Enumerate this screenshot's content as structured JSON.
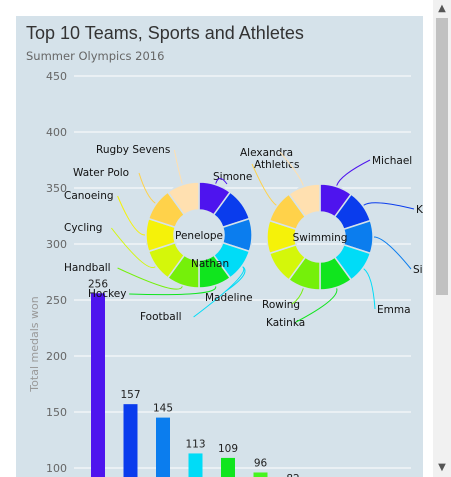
{
  "chart_data": {
    "type": "bar",
    "title": "Top 10 Teams, Sports and Athletes",
    "subtitle": "Summer Olympics 2016",
    "ylabel": "Total medals won",
    "ylim": [
      100,
      450
    ],
    "yticks": [
      100,
      150,
      200,
      250,
      300,
      350,
      400,
      450
    ],
    "grid": true,
    "series": [
      {
        "values": [
          256,
          157,
          145,
          113,
          109,
          96,
          82
        ]
      }
    ],
    "bar_colors": [
      "#4e14ee",
      "#0a3ced",
      "#0b7dee",
      "#00dcf7",
      "#10e51e",
      "#47f51f",
      "#a6f70a"
    ],
    "donuts": [
      {
        "center_label": "Penelope",
        "slices": [
          {
            "label": "Simone",
            "color": "#4e14ee"
          },
          {
            "label": "",
            "color": "#0a3ced"
          },
          {
            "label": "Nathan",
            "color": "#0b7dee"
          },
          {
            "label": "Madeline",
            "color": "#00dcf7"
          },
          {
            "label": "",
            "color": "#10e51e"
          },
          {
            "label": "",
            "color": "#75f00a"
          },
          {
            "label": "",
            "color": "#d4f70a"
          },
          {
            "label": "",
            "color": "#f5f209"
          },
          {
            "label": "",
            "color": "#ffd24a"
          },
          {
            "label": "",
            "color": "#ffe0b0"
          }
        ],
        "outer_labels": [
          {
            "text": "Rugby Sevens",
            "slice": 9
          },
          {
            "text": "Water Polo",
            "slice": 8
          },
          {
            "text": "Canoeing",
            "slice": 7
          },
          {
            "text": "Cycling",
            "slice": 6
          },
          {
            "text": "Handball",
            "slice": 5
          },
          {
            "text": "Hockey",
            "slice": 4
          },
          {
            "text": "Football",
            "slice": 3
          }
        ]
      },
      {
        "center_label": "Swimming",
        "slices": [
          {
            "label": "Michael",
            "color": "#4e14ee"
          },
          {
            "label": "K",
            "color": "#0a3ced"
          },
          {
            "label": "Si",
            "color": "#0b7dee"
          },
          {
            "label": "Emma",
            "color": "#00dcf7"
          },
          {
            "label": "Katinka",
            "color": "#10e51e"
          },
          {
            "label": "Rowing",
            "color": "#75f00a"
          },
          {
            "label": "",
            "color": "#d4f70a"
          },
          {
            "label": "",
            "color": "#f5f209"
          },
          {
            "label": "Athletics",
            "color": "#ffd24a"
          },
          {
            "label": "Alexandra",
            "color": "#ffe0b0"
          }
        ]
      }
    ]
  }
}
